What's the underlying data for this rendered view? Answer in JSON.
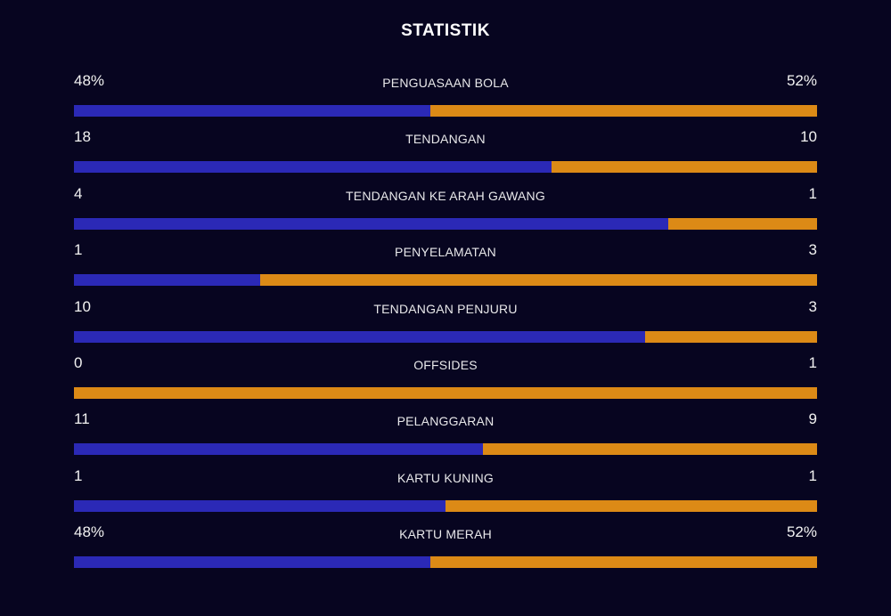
{
  "title": "STATISTIK",
  "colors": {
    "background": "#070520",
    "home": "#2b29b6",
    "away": "#dc8a16"
  },
  "stats": [
    {
      "label": "PENGUASAAN BOLA",
      "home": "48%",
      "away": "52%",
      "home_share": 0.48
    },
    {
      "label": "TENDANGAN",
      "home": "18",
      "away": "10",
      "home_share": 0.643
    },
    {
      "label": "TENDANGAN KE ARAH GAWANG",
      "home": "4",
      "away": "1",
      "home_share": 0.8
    },
    {
      "label": "PENYELAMATAN",
      "home": "1",
      "away": "3",
      "home_share": 0.25
    },
    {
      "label": "TENDANGAN PENJURU",
      "home": "10",
      "away": "3",
      "home_share": 0.769
    },
    {
      "label": "OFFSIDES",
      "home": "0",
      "away": "1",
      "home_share": 0.0
    },
    {
      "label": "PELANGGARAN",
      "home": "11",
      "away": "9",
      "home_share": 0.55
    },
    {
      "label": "KARTU KUNING",
      "home": "1",
      "away": "1",
      "home_share": 0.5
    },
    {
      "label": "KARTU MERAH",
      "home": "48%",
      "away": "52%",
      "home_share": 0.48
    }
  ]
}
